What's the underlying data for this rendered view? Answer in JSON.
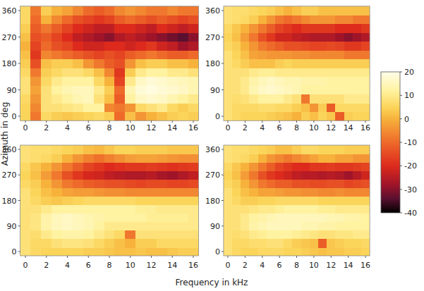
{
  "chart_data": [
    {
      "type": "heatmap",
      "xlabel": "Frequency in kHz",
      "ylabel": "Azimuth in deg",
      "colorbar_lim": [
        -40,
        20
      ],
      "colorbar_ticks": [
        20,
        10,
        0,
        -10,
        -20,
        -30,
        -40
      ],
      "x": [
        0,
        1,
        2,
        3,
        4,
        5,
        6,
        7,
        8,
        9,
        10,
        11,
        12,
        13,
        14,
        15,
        16
      ],
      "y": [
        0,
        30,
        60,
        90,
        120,
        150,
        180,
        210,
        240,
        270,
        300,
        330,
        360
      ],
      "xlim": [
        -0.5,
        16.5
      ],
      "ylim": [
        -15,
        375
      ],
      "xticks": [
        0,
        2,
        4,
        6,
        8,
        10,
        12,
        14,
        16
      ],
      "yticks": [
        0,
        90,
        180,
        270,
        360
      ],
      "values": [
        [
          5,
          -8,
          6,
          4,
          3,
          4,
          5,
          6,
          4,
          -10,
          2,
          -4,
          0,
          2,
          4,
          5,
          4
        ],
        [
          5,
          -6,
          8,
          8,
          9,
          10,
          12,
          12,
          -6,
          -8,
          -4,
          6,
          8,
          10,
          6,
          4,
          6
        ],
        [
          6,
          -4,
          8,
          10,
          12,
          14,
          15,
          8,
          2,
          -12,
          12,
          16,
          17,
          16,
          14,
          12,
          10
        ],
        [
          8,
          -2,
          8,
          12,
          14,
          15,
          15,
          10,
          4,
          -10,
          14,
          18,
          19,
          18,
          17,
          16,
          14
        ],
        [
          8,
          -4,
          6,
          10,
          12,
          12,
          12,
          6,
          0,
          -16,
          10,
          16,
          18,
          17,
          16,
          15,
          14
        ],
        [
          6,
          -8,
          4,
          6,
          8,
          8,
          6,
          2,
          -6,
          -18,
          4,
          10,
          12,
          12,
          10,
          10,
          8
        ],
        [
          4,
          -14,
          2,
          4,
          4,
          2,
          -4,
          -8,
          -12,
          -14,
          -4,
          2,
          4,
          4,
          2,
          2,
          0
        ],
        [
          2,
          -18,
          -6,
          -8,
          -10,
          -12,
          -14,
          -16,
          -14,
          -16,
          -12,
          -10,
          -8,
          -10,
          -12,
          -12,
          -10
        ],
        [
          0,
          -16,
          -10,
          -14,
          -16,
          -20,
          -22,
          -22,
          -20,
          -20,
          -22,
          -20,
          -18,
          -22,
          -24,
          -28,
          -26
        ],
        [
          2,
          -14,
          -12,
          -16,
          -20,
          -24,
          -26,
          -28,
          -30,
          -26,
          -24,
          -26,
          -28,
          -30,
          -32,
          -34,
          -30
        ],
        [
          4,
          -12,
          -8,
          -12,
          -16,
          -20,
          -22,
          -24,
          -24,
          -20,
          -20,
          -22,
          -24,
          -20,
          -22,
          -24,
          -22
        ],
        [
          6,
          -10,
          0,
          -6,
          -10,
          -14,
          -16,
          -18,
          -16,
          -12,
          -10,
          -12,
          -14,
          -12,
          -14,
          -16,
          -14
        ],
        [
          6,
          -8,
          4,
          0,
          -2,
          -6,
          -10,
          -12,
          -10,
          -6,
          -4,
          -6,
          -8,
          -8,
          -6,
          -8,
          -8
        ]
      ]
    },
    {
      "type": "heatmap",
      "x": [
        0,
        1,
        2,
        3,
        4,
        5,
        6,
        7,
        8,
        9,
        10,
        11,
        12,
        13,
        14,
        15,
        16
      ],
      "y": [
        0,
        30,
        60,
        90,
        120,
        150,
        180,
        210,
        240,
        270,
        300,
        330,
        360
      ],
      "xlim": [
        -0.5,
        16.5
      ],
      "ylim": [
        -15,
        375
      ],
      "xticks": [
        0,
        2,
        4,
        6,
        8,
        10,
        12,
        14,
        16
      ],
      "yticks": [
        0,
        90,
        180,
        270,
        360
      ],
      "values": [
        [
          8,
          6,
          5,
          5,
          5,
          4,
          3,
          2,
          0,
          4,
          2,
          5,
          3,
          -12,
          4,
          5,
          5
        ],
        [
          8,
          6,
          6,
          6,
          7,
          7,
          6,
          6,
          4,
          2,
          -4,
          4,
          -12,
          6,
          6,
          6,
          6
        ],
        [
          8,
          7,
          8,
          10,
          12,
          12,
          12,
          10,
          8,
          -8,
          8,
          8,
          8,
          8,
          10,
          10,
          10
        ],
        [
          8,
          8,
          10,
          14,
          16,
          17,
          16,
          15,
          14,
          12,
          12,
          12,
          12,
          12,
          12,
          12,
          12
        ],
        [
          8,
          8,
          10,
          13,
          15,
          16,
          15,
          14,
          14,
          13,
          13,
          13,
          12,
          12,
          12,
          12,
          12
        ],
        [
          8,
          8,
          8,
          10,
          11,
          11,
          10,
          10,
          10,
          10,
          10,
          10,
          10,
          10,
          10,
          10,
          10
        ],
        [
          8,
          6,
          4,
          2,
          2,
          2,
          4,
          5,
          4,
          4,
          4,
          4,
          4,
          4,
          4,
          4,
          4
        ],
        [
          8,
          5,
          2,
          -2,
          -3,
          -4,
          -4,
          -4,
          -5,
          -5,
          -6,
          -6,
          -6,
          -6,
          -8,
          -8,
          -8
        ],
        [
          6,
          4,
          0,
          -4,
          -8,
          -10,
          -12,
          -14,
          -14,
          -15,
          -16,
          -16,
          -15,
          -16,
          -18,
          -18,
          -16
        ],
        [
          5,
          2,
          -3,
          -8,
          -14,
          -18,
          -22,
          -22,
          -24,
          -25,
          -26,
          -26,
          -26,
          -28,
          -30,
          -28,
          -26
        ],
        [
          6,
          3,
          0,
          -4,
          -8,
          -12,
          -16,
          -18,
          -20,
          -18,
          -18,
          -18,
          -18,
          -20,
          -20,
          -20,
          -18
        ],
        [
          8,
          7,
          6,
          4,
          0,
          -4,
          -8,
          -10,
          -8,
          -6,
          -4,
          -4,
          -4,
          -6,
          -6,
          -8,
          -8
        ],
        [
          8,
          7,
          7,
          6,
          5,
          4,
          2,
          0,
          2,
          4,
          4,
          2,
          2,
          2,
          2,
          2,
          2
        ]
      ]
    },
    {
      "type": "heatmap",
      "x": [
        0,
        1,
        2,
        3,
        4,
        5,
        6,
        7,
        8,
        9,
        10,
        11,
        12,
        13,
        14,
        15,
        16
      ],
      "y": [
        0,
        30,
        60,
        90,
        120,
        150,
        180,
        210,
        240,
        270,
        300,
        330,
        360
      ],
      "xlim": [
        -0.5,
        16.5
      ],
      "ylim": [
        -15,
        375
      ],
      "xticks": [
        0,
        2,
        4,
        6,
        8,
        10,
        12,
        14,
        16
      ],
      "yticks": [
        0,
        90,
        180,
        270,
        360
      ],
      "values": [
        [
          8,
          6,
          5,
          5,
          5,
          5,
          4,
          4,
          3,
          2,
          2,
          3,
          2,
          2,
          3,
          4,
          4
        ],
        [
          8,
          6,
          6,
          8,
          9,
          9,
          8,
          6,
          4,
          2,
          0,
          4,
          4,
          6,
          6,
          6,
          6
        ],
        [
          8,
          7,
          10,
          12,
          13,
          13,
          12,
          10,
          8,
          6,
          -8,
          8,
          8,
          8,
          8,
          8,
          8
        ],
        [
          8,
          9,
          13,
          15,
          16,
          15,
          14,
          12,
          10,
          10,
          10,
          10,
          10,
          10,
          10,
          10,
          10
        ],
        [
          8,
          9,
          13,
          15,
          16,
          15,
          14,
          13,
          12,
          12,
          12,
          12,
          11,
          11,
          11,
          11,
          10
        ],
        [
          8,
          8,
          10,
          12,
          12,
          12,
          12,
          12,
          12,
          12,
          12,
          11,
          11,
          10,
          10,
          10,
          10
        ],
        [
          8,
          6,
          4,
          3,
          4,
          5,
          6,
          6,
          6,
          6,
          6,
          5,
          5,
          5,
          5,
          5,
          5
        ],
        [
          8,
          5,
          2,
          0,
          -2,
          -3,
          -3,
          -4,
          -5,
          -5,
          -6,
          -6,
          -6,
          -6,
          -6,
          -6,
          -6
        ],
        [
          6,
          4,
          0,
          -4,
          -8,
          -10,
          -12,
          -13,
          -14,
          -14,
          -15,
          -16,
          -15,
          -15,
          -16,
          -16,
          -15
        ],
        [
          5,
          2,
          -3,
          -8,
          -14,
          -18,
          -21,
          -22,
          -24,
          -25,
          -26,
          -26,
          -25,
          -27,
          -28,
          -26,
          -24
        ],
        [
          6,
          3,
          0,
          -4,
          -8,
          -12,
          -16,
          -18,
          -20,
          -19,
          -18,
          -18,
          -17,
          -18,
          -19,
          -18,
          -17
        ],
        [
          8,
          7,
          6,
          4,
          0,
          -4,
          -7,
          -9,
          -7,
          -5,
          -3,
          -2,
          -2,
          -3,
          -4,
          -5,
          -5
        ],
        [
          8,
          7,
          7,
          6,
          5,
          4,
          2,
          1,
          3,
          5,
          5,
          4,
          4,
          4,
          3,
          3,
          3
        ]
      ]
    },
    {
      "type": "heatmap",
      "x": [
        0,
        1,
        2,
        3,
        4,
        5,
        6,
        7,
        8,
        9,
        10,
        11,
        12,
        13,
        14,
        15,
        16
      ],
      "y": [
        0,
        30,
        60,
        90,
        120,
        150,
        180,
        210,
        240,
        270,
        300,
        330,
        360
      ],
      "xlim": [
        -0.5,
        16.5
      ],
      "ylim": [
        -15,
        375
      ],
      "xticks": [
        0,
        2,
        4,
        6,
        8,
        10,
        12,
        14,
        16
      ],
      "yticks": [
        0,
        90,
        180,
        270,
        360
      ],
      "values": [
        [
          8,
          6,
          5,
          5,
          6,
          6,
          6,
          5,
          5,
          4,
          3,
          2,
          3,
          3,
          4,
          4,
          5
        ],
        [
          8,
          6,
          6,
          7,
          7,
          8,
          8,
          6,
          4,
          3,
          2,
          -12,
          3,
          4,
          5,
          5,
          6
        ],
        [
          8,
          7,
          8,
          10,
          11,
          12,
          12,
          12,
          11,
          10,
          9,
          8,
          8,
          9,
          9,
          10,
          10
        ],
        [
          8,
          8,
          10,
          13,
          14,
          15,
          15,
          15,
          15,
          14,
          14,
          13,
          13,
          12,
          12,
          12,
          12
        ],
        [
          8,
          8,
          10,
          12,
          13,
          14,
          15,
          15,
          15,
          15,
          15,
          15,
          14,
          14,
          13,
          13,
          12
        ],
        [
          8,
          8,
          8,
          9,
          10,
          10,
          11,
          12,
          12,
          12,
          12,
          11,
          11,
          10,
          10,
          10,
          10
        ],
        [
          8,
          6,
          4,
          4,
          5,
          5,
          6,
          6,
          6,
          6,
          6,
          5,
          5,
          5,
          5,
          5,
          5
        ],
        [
          8,
          5,
          2,
          0,
          -2,
          -2,
          -3,
          -4,
          -4,
          -5,
          -5,
          -6,
          -6,
          -5,
          -6,
          -6,
          -6
        ],
        [
          6,
          4,
          0,
          -4,
          -8,
          -10,
          -12,
          -12,
          -14,
          -14,
          -15,
          -15,
          -14,
          -14,
          -16,
          -15,
          -14
        ],
        [
          5,
          2,
          -3,
          -8,
          -14,
          -18,
          -20,
          -22,
          -24,
          -25,
          -25,
          -26,
          -25,
          -26,
          -28,
          -25,
          -22
        ],
        [
          6,
          3,
          0,
          -4,
          -8,
          -12,
          -16,
          -18,
          -20,
          -20,
          -18,
          -18,
          -17,
          -18,
          -18,
          -17,
          -16
        ],
        [
          8,
          7,
          6,
          4,
          0,
          -4,
          -6,
          -8,
          -6,
          -4,
          -2,
          0,
          0,
          -2,
          -2,
          -4,
          -4
        ],
        [
          8,
          7,
          7,
          6,
          5,
          4,
          2,
          2,
          4,
          6,
          6,
          5,
          5,
          5,
          4,
          4,
          4
        ]
      ]
    }
  ]
}
